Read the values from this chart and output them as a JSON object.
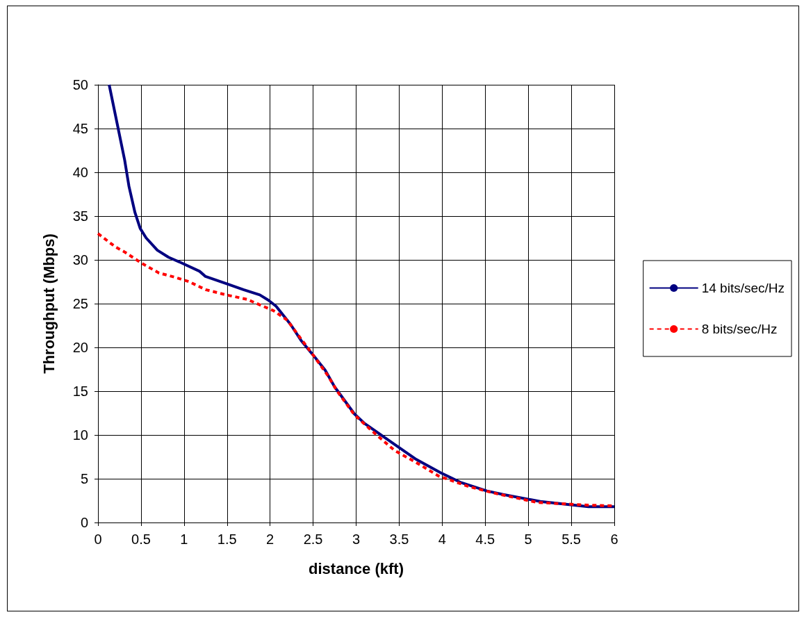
{
  "chart_data": {
    "type": "line",
    "xlabel": "distance (kft)",
    "ylabel": "Throughput (Mbps)",
    "xlim": [
      0,
      6
    ],
    "xticks": [
      0,
      0.5,
      1,
      1.5,
      2,
      2.5,
      3,
      3.5,
      4,
      4.5,
      5,
      5.5,
      6
    ],
    "ylim": [
      0,
      50
    ],
    "yticks": [
      0,
      5,
      10,
      15,
      20,
      25,
      30,
      35,
      40,
      45,
      50
    ],
    "grid": true,
    "legend": "right",
    "marker": "none",
    "series": [
      {
        "name": "14 bits/sec/Hz",
        "color": "#000080",
        "line_style": "solid",
        "x": [
          0.13,
          0.31,
          0.36,
          0.43,
          0.49,
          0.56,
          0.69,
          0.82,
          0.96,
          1.18,
          1.25,
          1.49,
          1.69,
          1.88,
          1.98,
          2.07,
          2.24,
          2.36,
          2.51,
          2.64,
          2.75,
          2.98,
          3.1,
          3.45,
          3.7,
          3.98,
          4.21,
          4.52,
          4.71,
          5.14,
          5.7,
          6
        ],
        "values": [
          50,
          41.4,
          38.4,
          35.4,
          33.6,
          32.5,
          31.1,
          30.3,
          29.7,
          28.7,
          28.1,
          27.3,
          26.6,
          26,
          25.4,
          24.7,
          22.6,
          20.8,
          19,
          17.4,
          15.5,
          12.4,
          11.3,
          8.9,
          7.2,
          5.7,
          4.6,
          3.6,
          3.2,
          2.4,
          1.8,
          1.8
        ]
      },
      {
        "name": "8 bits/sec/Hz",
        "color": "#ff0000",
        "line_style": "dashed",
        "x": [
          0,
          0.2,
          0.31,
          0.51,
          0.71,
          0.9,
          1.06,
          1.25,
          1.49,
          1.73,
          1.92,
          2.04,
          2.2,
          2.35,
          2.51,
          2.67,
          2.78,
          2.98,
          3.18,
          3.45,
          3.69,
          3.96,
          4.31,
          4.63,
          5.1,
          5.65,
          6
        ],
        "values": [
          33,
          31.5,
          30.9,
          29.6,
          28.5,
          28,
          27.5,
          26.6,
          26,
          25.5,
          24.7,
          24.2,
          23.1,
          21.1,
          19,
          16.8,
          15,
          12.3,
          10.5,
          8.2,
          6.9,
          5.3,
          4.1,
          3.3,
          2.3,
          2,
          1.9
        ]
      }
    ]
  }
}
